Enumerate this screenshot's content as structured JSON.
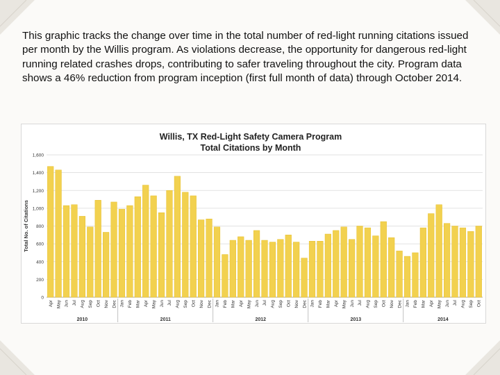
{
  "intro_text": "This graphic tracks the change over time in the total number of red-light running citations issued per month by the Willis program. As violations decrease, the opportunity for dangerous red-light running related crashes drops, contributing to safer traveling throughout the city. Program data shows a 46% reduction from program inception (first full month of data) through October 2014.",
  "colors": {
    "bar": "#f2d14f",
    "bar_stroke": "#e6bf2c",
    "grid": "#d9d9d9",
    "background": "#fbfaf8"
  },
  "chart_data": {
    "type": "bar",
    "title": "Willis, TX Red-Light Safety Camera Program",
    "subtitle": "Total Citations by Month",
    "xlabel": "",
    "ylabel": "Total No. of Citations",
    "ylim": [
      0,
      1600
    ],
    "yticks": [
      "0",
      "200",
      "400",
      "600",
      "800",
      "1,000",
      "1,200",
      "1,400",
      "1,600"
    ],
    "grid": true,
    "categories": [
      "Apr",
      "May",
      "Jun",
      "Jul",
      "Aug",
      "Sep",
      "Oct",
      "Nov",
      "Dec",
      "Jan",
      "Feb",
      "Mar",
      "Apr",
      "May",
      "Jun",
      "Jul",
      "Aug",
      "Sep",
      "Oct",
      "Nov",
      "Dec",
      "Jan",
      "Feb",
      "Mar",
      "Apr",
      "May",
      "Jun",
      "Jul",
      "Aug",
      "Sep",
      "Oct",
      "Nov",
      "Dec",
      "Jan",
      "Feb",
      "Mar",
      "Apr",
      "May",
      "Jun",
      "Jul",
      "Aug",
      "Sep",
      "Oct",
      "Nov",
      "Dec",
      "Jan",
      "Feb",
      "Mar",
      "Apr",
      "May",
      "Jun",
      "Jul",
      "Aug",
      "Sep",
      "Oct"
    ],
    "values": [
      1470,
      1430,
      1030,
      1040,
      910,
      790,
      1090,
      730,
      1070,
      990,
      1030,
      1130,
      1260,
      1140,
      950,
      1200,
      1360,
      1180,
      1140,
      870,
      880,
      790,
      480,
      640,
      680,
      640,
      750,
      640,
      620,
      650,
      700,
      620,
      440,
      630,
      630,
      710,
      750,
      790,
      650,
      800,
      780,
      690,
      850,
      670,
      520,
      460,
      500,
      780,
      940,
      1040,
      830,
      800,
      780,
      740,
      800
    ],
    "year_groups": [
      {
        "label": "2010",
        "start": 0,
        "end": 8
      },
      {
        "label": "2011",
        "start": 9,
        "end": 20
      },
      {
        "label": "2012",
        "start": 21,
        "end": 32
      },
      {
        "label": "2013",
        "start": 33,
        "end": 44
      },
      {
        "label": "2014",
        "start": 45,
        "end": 54
      }
    ]
  }
}
